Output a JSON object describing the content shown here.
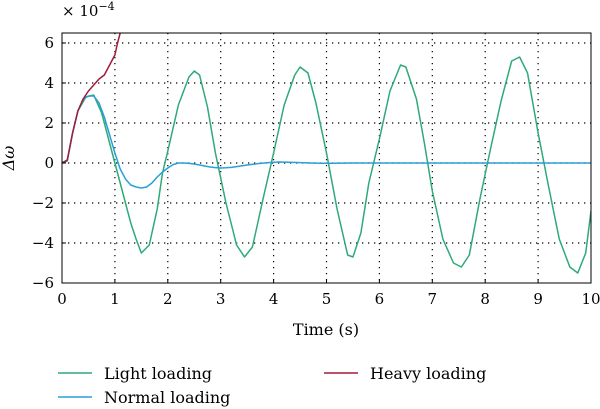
{
  "chart_data": {
    "type": "line",
    "title": "",
    "xlabel": "Time (s)",
    "ylabel": "Δω",
    "y_exponent": "× 10",
    "y_exponent_power": "−4",
    "xlim": [
      0,
      10
    ],
    "ylim": [
      -6,
      6.5
    ],
    "x_ticks": [
      0,
      1,
      2,
      3,
      4,
      5,
      6,
      7,
      8,
      9,
      10
    ],
    "x_tick_labels": [
      "0",
      "1",
      "2",
      "3",
      "4",
      "5",
      "6",
      "7",
      "8",
      "9",
      "10"
    ],
    "y_ticks": [
      -6,
      -4,
      -2,
      0,
      2,
      4,
      6
    ],
    "y_tick_labels": [
      "−6",
      "−4",
      "−2",
      "0",
      "2",
      "4",
      "6"
    ],
    "grid": true,
    "legend_position": "bottom",
    "colors": {
      "light": "#2eaa78",
      "normal": "#2a9fd8",
      "heavy": "#a01c3c"
    },
    "series": [
      {
        "name": "Light loading",
        "color": "#2eaa78",
        "x": [
          0,
          0.1,
          0.2,
          0.3,
          0.45,
          0.6,
          0.75,
          0.9,
          1.0,
          1.1,
          1.2,
          1.3,
          1.4,
          1.5,
          1.65,
          1.8,
          1.9,
          2.0,
          2.2,
          2.4,
          2.5,
          2.6,
          2.75,
          2.9,
          3.1,
          3.3,
          3.45,
          3.6,
          3.8,
          4.0,
          4.2,
          4.4,
          4.5,
          4.65,
          4.8,
          5.0,
          5.2,
          5.4,
          5.5,
          5.65,
          5.8,
          6.0,
          6.2,
          6.4,
          6.5,
          6.7,
          6.85,
          7.0,
          7.2,
          7.4,
          7.55,
          7.7,
          7.9,
          8.1,
          8.3,
          8.5,
          8.65,
          8.8,
          9.0,
          9.2,
          9.4,
          9.6,
          9.75,
          9.9,
          10.0
        ],
        "y": [
          0,
          0.1,
          1.5,
          2.6,
          3.3,
          3.4,
          2.5,
          1.0,
          0.0,
          -1.0,
          -2.0,
          -3.0,
          -3.8,
          -4.5,
          -4.1,
          -2.3,
          -0.5,
          0.6,
          2.9,
          4.3,
          4.6,
          4.4,
          2.8,
          0.5,
          -2.0,
          -4.1,
          -4.7,
          -4.2,
          -1.8,
          0.5,
          2.9,
          4.4,
          4.8,
          4.5,
          3.0,
          0.5,
          -2.3,
          -4.6,
          -4.7,
          -3.5,
          -1.0,
          1.2,
          3.6,
          4.9,
          4.8,
          3.2,
          1.0,
          -1.4,
          -3.8,
          -5.0,
          -5.2,
          -4.6,
          -1.8,
          0.7,
          3.1,
          5.1,
          5.3,
          4.5,
          1.5,
          -1.2,
          -3.8,
          -5.2,
          -5.5,
          -4.5,
          -2.4
        ]
      },
      {
        "name": "Normal loading",
        "color": "#2a9fd8",
        "x": [
          0,
          0.1,
          0.2,
          0.3,
          0.4,
          0.5,
          0.6,
          0.7,
          0.8,
          0.9,
          1.0,
          1.1,
          1.2,
          1.3,
          1.4,
          1.5,
          1.6,
          1.7,
          1.8,
          1.9,
          2.0,
          2.1,
          2.2,
          2.3,
          2.4,
          2.5,
          2.6,
          2.7,
          2.8,
          2.9,
          3.0,
          3.1,
          3.2,
          3.3,
          3.5,
          3.7,
          3.9,
          4.1,
          4.3,
          4.5,
          4.7,
          4.9,
          5.1,
          5.5,
          6.0,
          6.5,
          7.0,
          7.5,
          8.0,
          8.5,
          9.0,
          9.5,
          10.0
        ],
        "y": [
          0,
          0.15,
          1.5,
          2.6,
          3.2,
          3.35,
          3.35,
          3.0,
          2.3,
          1.4,
          0.5,
          -0.3,
          -0.8,
          -1.1,
          -1.2,
          -1.25,
          -1.2,
          -1.0,
          -0.7,
          -0.45,
          -0.25,
          -0.08,
          0.0,
          0.0,
          -0.02,
          -0.05,
          -0.1,
          -0.15,
          -0.2,
          -0.23,
          -0.25,
          -0.24,
          -0.22,
          -0.18,
          -0.1,
          -0.03,
          0.02,
          0.05,
          0.04,
          0.02,
          0.0,
          -0.01,
          -0.01,
          0.0,
          0.0,
          0.0,
          0.0,
          0.0,
          0.0,
          0.0,
          0.0,
          0.0,
          0.0
        ]
      },
      {
        "name": "Heavy loading",
        "color": "#a01c3c",
        "x": [
          0,
          0.1,
          0.2,
          0.3,
          0.4,
          0.5,
          0.6,
          0.7,
          0.8,
          0.9,
          1.0,
          1.05,
          1.1
        ],
        "y": [
          0,
          0.15,
          1.5,
          2.6,
          3.2,
          3.6,
          3.9,
          4.2,
          4.4,
          4.9,
          5.4,
          6.0,
          6.5
        ]
      }
    ]
  }
}
